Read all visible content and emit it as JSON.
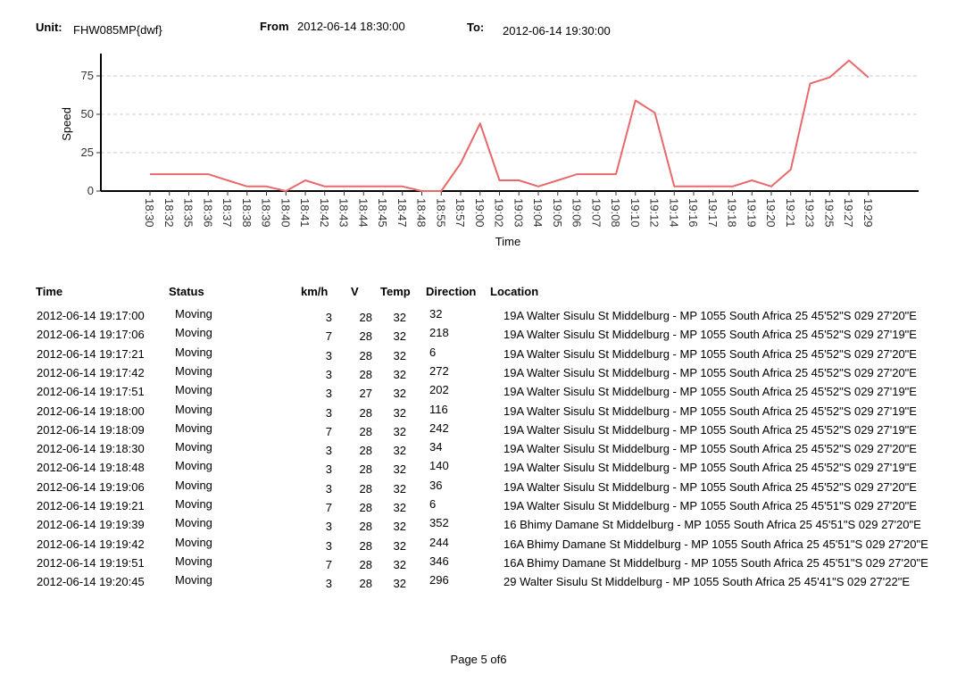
{
  "header": {
    "unit_label": "Unit:",
    "unit_value": "FHW085MP{dwf}",
    "from_label": "From",
    "from_value": "2012-06-14 18:30:00",
    "to_label": "To:",
    "to_value": "2012-06-14 19:30:00"
  },
  "chart_data": {
    "type": "line",
    "xlabel": "Time",
    "ylabel": "Speed",
    "ylim": [
      0,
      90
    ],
    "yticks": [
      0,
      25,
      50,
      75
    ],
    "grid": "horizontal dashed",
    "color": "#e8696b",
    "categories": [
      "18:30",
      "18:32",
      "18:35",
      "18:36",
      "18:37",
      "18:38",
      "18:39",
      "18:40",
      "18:41",
      "18:42",
      "18:43",
      "18:44",
      "18:45",
      "18:47",
      "18:48",
      "18:55",
      "18:57",
      "19:00",
      "19:02",
      "19:03",
      "19:04",
      "19:05",
      "19:06",
      "19:07",
      "19:08",
      "19:10",
      "19:12",
      "19:14",
      "19:16",
      "19:17",
      "19:18",
      "19:19",
      "19:20",
      "19:21",
      "19:23",
      "19:25",
      "19:27",
      "19:29"
    ],
    "values": [
      11,
      11,
      11,
      11,
      7,
      3,
      3,
      0,
      7,
      3,
      3,
      3,
      3,
      3,
      0,
      0,
      18,
      44,
      7,
      7,
      3,
      7,
      11,
      11,
      11,
      59,
      51,
      3,
      3,
      3,
      3,
      7,
      3,
      14,
      70,
      74,
      85,
      74
    ]
  },
  "table": {
    "columns": [
      "Time",
      "Status",
      "km/h",
      "V",
      "Temp",
      "Direction",
      "Location"
    ],
    "rows": [
      [
        "2012-06-14 19:17:00",
        "Moving",
        "3",
        "28",
        "32",
        "32",
        "19A Walter Sisulu St  Middelburg - MP 1055  South Africa 25 45'52\"S 029 27'20\"E"
      ],
      [
        "2012-06-14 19:17:06",
        "Moving",
        "7",
        "28",
        "32",
        "218",
        "19A Walter Sisulu St  Middelburg - MP 1055  South Africa 25 45'52\"S 029 27'19\"E"
      ],
      [
        "2012-06-14 19:17:21",
        "Moving",
        "3",
        "28",
        "32",
        "6",
        "19A Walter Sisulu St  Middelburg - MP 1055  South Africa 25 45'52\"S 029 27'20\"E"
      ],
      [
        "2012-06-14 19:17:42",
        "Moving",
        "3",
        "28",
        "32",
        "272",
        "19A Walter Sisulu St  Middelburg - MP 1055  South Africa 25 45'52\"S 029 27'20\"E"
      ],
      [
        "2012-06-14 19:17:51",
        "Moving",
        "3",
        "27",
        "32",
        "202",
        "19A Walter Sisulu St  Middelburg - MP 1055  South Africa 25 45'52\"S 029 27'19\"E"
      ],
      [
        "2012-06-14 19:18:00",
        "Moving",
        "3",
        "28",
        "32",
        "116",
        "19A Walter Sisulu St  Middelburg - MP 1055  South Africa 25 45'52\"S 029 27'19\"E"
      ],
      [
        "2012-06-14 19:18:09",
        "Moving",
        "7",
        "28",
        "32",
        "242",
        "19A Walter Sisulu St  Middelburg - MP 1055  South Africa 25 45'52\"S 029 27'19\"E"
      ],
      [
        "2012-06-14 19:18:30",
        "Moving",
        "3",
        "28",
        "32",
        "34",
        "19A Walter Sisulu St  Middelburg - MP 1055  South Africa 25 45'52\"S 029 27'20\"E"
      ],
      [
        "2012-06-14 19:18:48",
        "Moving",
        "3",
        "28",
        "32",
        "140",
        "19A Walter Sisulu St  Middelburg - MP 1055  South Africa 25 45'52\"S 029 27'19\"E"
      ],
      [
        "2012-06-14 19:19:06",
        "Moving",
        "3",
        "28",
        "32",
        "36",
        "19A Walter Sisulu St  Middelburg - MP 1055  South Africa 25 45'52\"S 029 27'20\"E"
      ],
      [
        "2012-06-14 19:19:21",
        "Moving",
        "7",
        "28",
        "32",
        "6",
        "19A Walter Sisulu St  Middelburg - MP 1055  South Africa 25 45'51\"S 029 27'20\"E"
      ],
      [
        "2012-06-14 19:19:39",
        "Moving",
        "3",
        "28",
        "32",
        "352",
        "16 Bhimy Damane St  Middelburg - MP 1055  South Africa 25 45'51\"S 029 27'20\"E"
      ],
      [
        "2012-06-14 19:19:42",
        "Moving",
        "3",
        "28",
        "32",
        "244",
        "16A Bhimy Damane St  Middelburg - MP 1055  South Africa 25 45'51\"S 029 27'20\"E"
      ],
      [
        "2012-06-14 19:19:51",
        "Moving",
        "7",
        "28",
        "32",
        "346",
        "16A Bhimy Damane St  Middelburg - MP 1055  South Africa 25 45'51\"S 029 27'20\"E"
      ],
      [
        "2012-06-14 19:20:45",
        "Moving",
        "3",
        "28",
        "32",
        "296",
        "29 Walter Sisulu St  Middelburg - MP 1055  South Africa 25 45'41\"S 029 27'22\"E"
      ]
    ]
  },
  "footer": {
    "page": "Page 5 of6"
  }
}
